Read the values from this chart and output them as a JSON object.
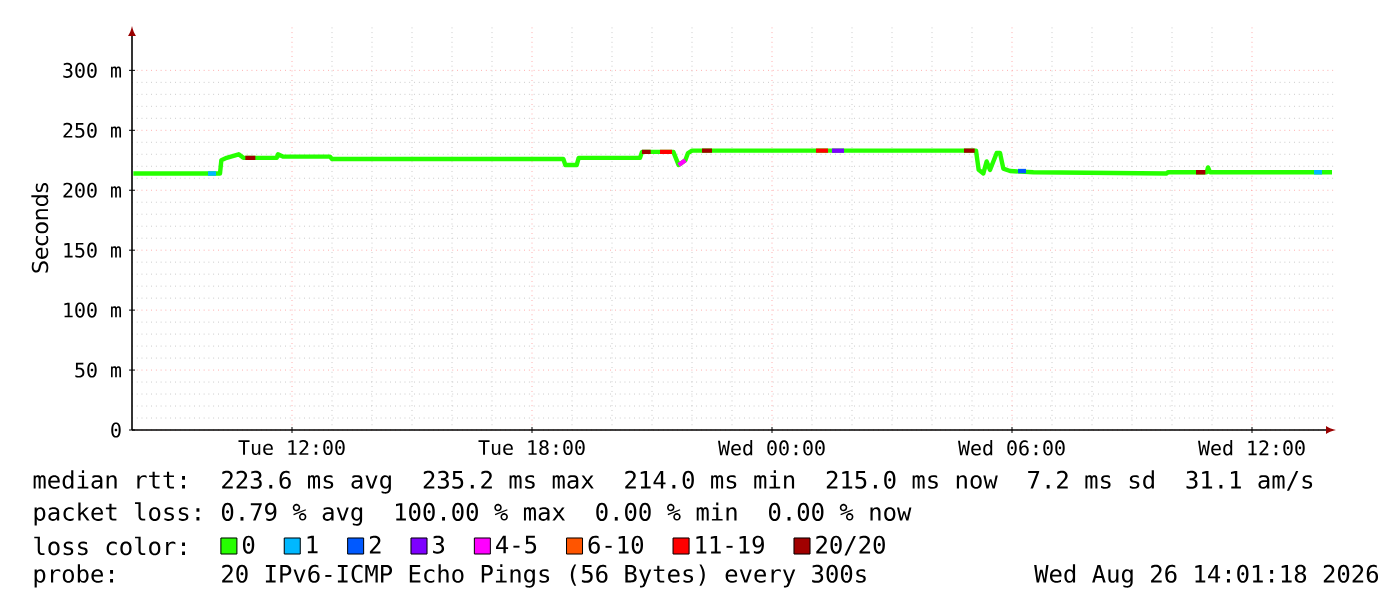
{
  "chart_data": {
    "type": "line",
    "ylabel": "Seconds",
    "xlim": [
      "2026-08-25T08:00",
      "2026-08-26T14:06"
    ],
    "ylim": [
      0,
      337
    ],
    "xticks": [
      {
        "value": "2026-08-25T12:00",
        "label": "Tue 12:00"
      },
      {
        "value": "2026-08-25T18:00",
        "label": "Tue 18:00"
      },
      {
        "value": "2026-08-26T00:00",
        "label": "Wed 00:00"
      },
      {
        "value": "2026-08-26T06:00",
        "label": "Wed 06:00"
      },
      {
        "value": "2026-08-26T12:00",
        "label": "Wed 12:00"
      }
    ],
    "yticks": [
      {
        "value": 0,
        "label": "0"
      },
      {
        "value": 50,
        "label": "50 m"
      },
      {
        "value": 100,
        "label": "100 m"
      },
      {
        "value": 150,
        "label": "150 m"
      },
      {
        "value": 200,
        "label": "200 m"
      },
      {
        "value": 250,
        "label": "250 m"
      },
      {
        "value": 300,
        "label": "300 m"
      }
    ],
    "grid": true,
    "legend": "bottom",
    "line_style": "solid",
    "series": [
      {
        "name": "0",
        "color": "#26ff00",
        "x": [
          "2026-08-25T08:02",
          "2026-08-25T09:30",
          "2026-08-25T10:12",
          "2026-08-25T10:14",
          "2026-08-25T10:22",
          "2026-08-25T10:40",
          "2026-08-25T10:47",
          "2026-08-25T11:37",
          "2026-08-25T11:39",
          "2026-08-25T11:47",
          "2026-08-25T12:57",
          "2026-08-25T13:00",
          "2026-08-25T18:47",
          "2026-08-25T18:50",
          "2026-08-25T19:07",
          "2026-08-25T19:10",
          "2026-08-25T20:42",
          "2026-08-25T20:45",
          "2026-08-25T21:32",
          "2026-08-25T21:40",
          "2026-08-25T21:50",
          "2026-08-25T21:54",
          "2026-08-25T22:00",
          "2026-08-26T05:06",
          "2026-08-26T05:10",
          "2026-08-26T05:17",
          "2026-08-26T05:22",
          "2026-08-26T05:27",
          "2026-08-26T05:32",
          "2026-08-26T05:37",
          "2026-08-26T05:42",
          "2026-08-26T05:47",
          "2026-08-26T05:57",
          "2026-08-26T06:32",
          "2026-08-26T09:52",
          "2026-08-26T09:54",
          "2026-08-26T10:52",
          "2026-08-26T10:54",
          "2026-08-26T10:57",
          "2026-08-26T14:00"
        ],
        "values": [
          214,
          214,
          214,
          225,
          227,
          230,
          227,
          227,
          230,
          228,
          228,
          226,
          226,
          221,
          221,
          227,
          227,
          232,
          232,
          221,
          225,
          231,
          233,
          233,
          217,
          214,
          224,
          217,
          224,
          231,
          231,
          218,
          216,
          215,
          214,
          215,
          215,
          219,
          215,
          215
        ]
      },
      {
        "name": "1",
        "color": "#00b8ff",
        "x": [
          "2026-08-25T09:54",
          "2026-08-25T10:06",
          "2026-08-25T20:00",
          "2026-08-26T13:33",
          "2026-08-26T13:45"
        ],
        "values": [
          214,
          214,
          null,
          215,
          215
        ]
      },
      {
        "name": "2",
        "color": "#0059ff",
        "x": [
          "2026-08-26T06:09",
          "2026-08-26T06:21"
        ],
        "values": [
          216,
          216
        ]
      },
      {
        "name": "3",
        "color": "#7e00ff",
        "x": [
          "2026-08-26T01:30",
          "2026-08-26T01:48"
        ],
        "values": [
          233,
          233
        ]
      },
      {
        "name": "4-5",
        "color": "#ff00ff",
        "x": [
          "2026-08-25T21:40",
          "2026-08-25T21:50"
        ],
        "values": [
          221,
          225
        ]
      },
      {
        "name": "6-10",
        "color": "#ff5500"
      },
      {
        "name": "11-19",
        "color": "#ff0000",
        "x": [
          "2026-08-25T21:12",
          "2026-08-25T21:30",
          "2026-08-25T23:00",
          "2026-08-26T01:06",
          "2026-08-26T01:24"
        ],
        "values": [
          232,
          232,
          null,
          233,
          233
        ]
      },
      {
        "name": "20/20",
        "color": "#a10000",
        "x": [
          "2026-08-25T10:50",
          "2026-08-25T11:05",
          "2026-08-25T15:00",
          "2026-08-25T20:45",
          "2026-08-25T20:58",
          "2026-08-25T21:05",
          "2026-08-25T22:15",
          "2026-08-25T22:30",
          "2026-08-26T01:00",
          "2026-08-26T04:48",
          "2026-08-26T05:04",
          "2026-08-26T08:00",
          "2026-08-26T10:36",
          "2026-08-26T10:50"
        ],
        "values": [
          227,
          227,
          null,
          232,
          232,
          null,
          233,
          233,
          null,
          233,
          233,
          null,
          215,
          215
        ]
      }
    ],
    "annotations": [
      "median rtt:",
      "223.6 ms avg",
      "235.2 ms max",
      "214.0 ms min",
      "215.0 ms now",
      "7.2 ms sd",
      "31.1 am/s",
      "packet loss:",
      "0.79 % avg",
      "100.00 % max",
      "0.00 % min",
      "0.00 % now",
      "loss color:",
      "probe:",
      "20 IPv6-ICMP Echo Pings (56 Bytes) every 300s",
      "Wed Aug 26 14:01:18 2026"
    ]
  }
}
